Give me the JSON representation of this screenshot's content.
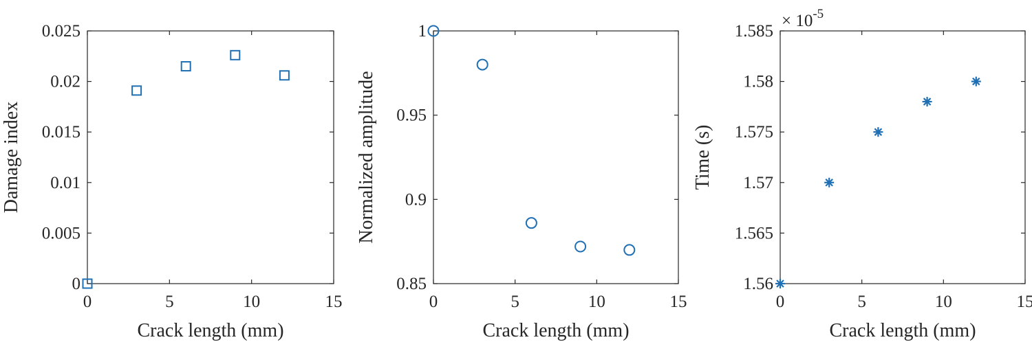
{
  "marker_color": "#1f6fb4",
  "axis_color": "#262626",
  "chart_data": [
    {
      "type": "scatter",
      "marker": "square",
      "x": [
        0,
        3,
        6,
        9,
        12
      ],
      "y": [
        0,
        0.0191,
        0.0215,
        0.0226,
        0.0206
      ],
      "xlabel": "Crack length (mm)",
      "ylabel": "Damage index",
      "xlim": [
        0,
        15
      ],
      "ylim": [
        0,
        0.025
      ],
      "xticks": [
        0,
        5,
        10,
        15
      ],
      "xtick_labels": [
        "0",
        "5",
        "10",
        "15"
      ],
      "yticks": [
        0,
        0.005,
        0.01,
        0.015,
        0.02,
        0.025
      ],
      "ytick_labels": [
        "0",
        "0.005",
        "0.01",
        "0.015",
        "0.02",
        "0.025"
      ],
      "exponent_label": "",
      "grid": false
    },
    {
      "type": "scatter",
      "marker": "circle",
      "x": [
        0,
        3,
        6,
        9,
        12
      ],
      "y": [
        1.0,
        0.98,
        0.886,
        0.872,
        0.87
      ],
      "xlabel": "Crack length (mm)",
      "ylabel": "Normalized amplitude",
      "xlim": [
        0,
        15
      ],
      "ylim": [
        0.85,
        1.0
      ],
      "xticks": [
        0,
        5,
        10,
        15
      ],
      "xtick_labels": [
        "0",
        "5",
        "10",
        "15"
      ],
      "yticks": [
        0.85,
        0.9,
        0.95,
        1.0
      ],
      "ytick_labels": [
        "0.85",
        "0.9",
        "0.95",
        "1"
      ],
      "exponent_label": "",
      "grid": false
    },
    {
      "type": "scatter",
      "marker": "asterisk",
      "x": [
        0,
        3,
        6,
        9,
        12
      ],
      "y": [
        1.56e-05,
        1.57e-05,
        1.575e-05,
        1.578e-05,
        1.58e-05
      ],
      "xlabel": "Crack length (mm)",
      "ylabel": "Time (s)",
      "xlim": [
        0,
        15
      ],
      "ylim": [
        1.56e-05,
        1.585e-05
      ],
      "xticks": [
        0,
        5,
        10,
        15
      ],
      "xtick_labels": [
        "0",
        "5",
        "10",
        "15"
      ],
      "yticks": [
        1.56e-05,
        1.565e-05,
        1.57e-05,
        1.575e-05,
        1.58e-05,
        1.585e-05
      ],
      "ytick_labels": [
        "1.56",
        "1.565",
        "1.57",
        "1.575",
        "1.58",
        "1.585"
      ],
      "exponent_label": "× 10",
      "exponent_power": "-5",
      "grid": false
    }
  ]
}
